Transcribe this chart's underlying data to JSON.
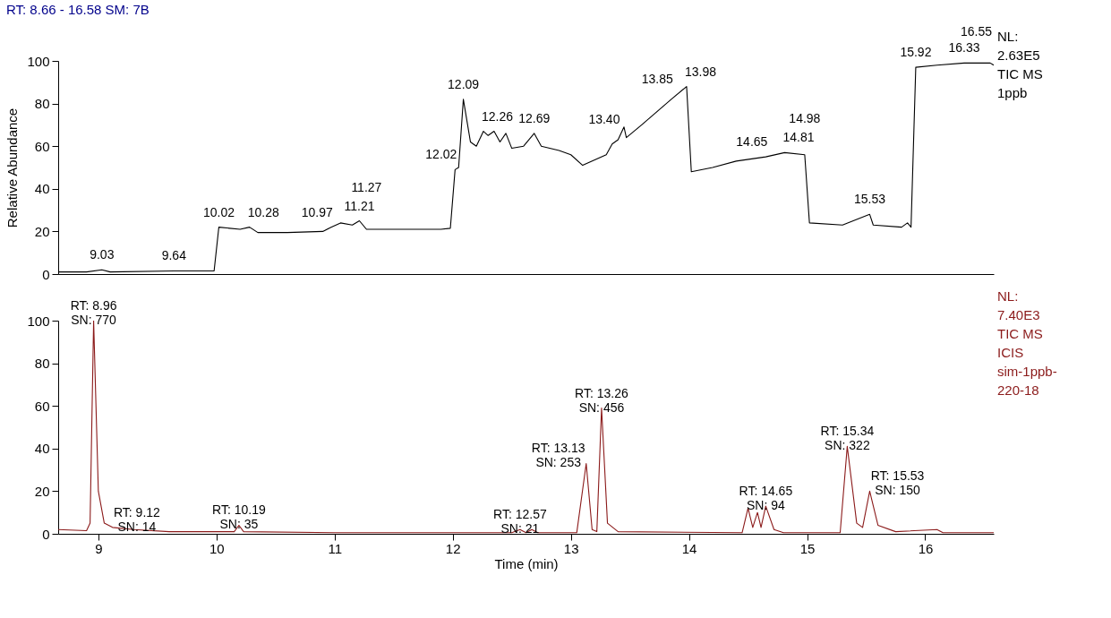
{
  "chart_data": [
    {
      "type": "line",
      "title": "RT: 8.66 - 16.58   SM: 7B",
      "ylabel": "Relative Abundance",
      "xlim": [
        8.66,
        16.58
      ],
      "ylim": [
        0,
        100
      ],
      "yticks": [
        0,
        20,
        40,
        60,
        80,
        100
      ],
      "tick_labels": "y",
      "grid": false,
      "series": [
        {
          "color": "#000000",
          "x": [
            8.66,
            8.9,
            9.03,
            9.1,
            9.64,
            9.98,
            10.02,
            10.2,
            10.28,
            10.35,
            10.6,
            10.9,
            10.97,
            11.05,
            11.15,
            11.21,
            11.27,
            11.5,
            11.9,
            11.98,
            12.02,
            12.05,
            12.09,
            12.15,
            12.2,
            12.26,
            12.3,
            12.35,
            12.4,
            12.45,
            12.5,
            12.6,
            12.69,
            12.75,
            12.9,
            13.0,
            13.1,
            13.3,
            13.35,
            13.4,
            13.45,
            13.47,
            13.6,
            13.85,
            13.98,
            14.02,
            14.2,
            14.4,
            14.65,
            14.81,
            14.98,
            15.02,
            15.3,
            15.53,
            15.56,
            15.8,
            15.85,
            15.88,
            15.92,
            16.1,
            16.33,
            16.55,
            16.58
          ],
          "values": [
            1,
            1,
            2,
            1,
            1.5,
            1.5,
            22,
            21,
            22,
            19.5,
            19.5,
            20,
            22,
            24,
            23,
            25,
            21,
            21,
            21,
            21.5,
            49,
            50,
            82,
            62,
            60,
            67,
            65,
            67,
            62,
            66,
            59,
            60,
            66,
            60,
            58,
            56,
            51,
            56,
            61,
            63,
            69,
            64,
            70,
            82,
            88,
            48,
            50,
            53,
            55,
            57,
            56,
            24,
            23,
            28,
            23,
            22,
            24,
            22,
            97,
            98,
            99,
            99,
            98
          ]
        }
      ],
      "annotations": [
        {
          "text": "9.03",
          "x": 9.03,
          "y": 2
        },
        {
          "text": "9.64",
          "x": 9.64,
          "y": 1.5
        },
        {
          "text": "10.02",
          "x": 10.02,
          "y": 22
        },
        {
          "text": "10.28",
          "x": 10.28,
          "y": 22
        },
        {
          "text": "10.97",
          "x": 10.97,
          "y": 22
        },
        {
          "text": "11.21",
          "x": 11.21,
          "y": 25
        },
        {
          "text": "11.27",
          "x": 11.27,
          "y": 21
        },
        {
          "text": "12.02",
          "x": 12.02,
          "y": 49
        },
        {
          "text": "12.09",
          "x": 12.09,
          "y": 82
        },
        {
          "text": "12.26",
          "x": 12.26,
          "y": 67
        },
        {
          "text": "12.69",
          "x": 12.69,
          "y": 66
        },
        {
          "text": "13.40",
          "x": 13.4,
          "y": 63
        },
        {
          "text": "13.85",
          "x": 13.85,
          "y": 82
        },
        {
          "text": "13.98",
          "x": 13.98,
          "y": 88
        },
        {
          "text": "14.65",
          "x": 14.65,
          "y": 55
        },
        {
          "text": "14.81",
          "x": 14.81,
          "y": 57
        },
        {
          "text": "14.98",
          "x": 14.98,
          "y": 56
        },
        {
          "text": "15.53",
          "x": 15.53,
          "y": 28
        },
        {
          "text": "15.92",
          "x": 15.92,
          "y": 97
        },
        {
          "text": "16.33",
          "x": 16.33,
          "y": 99
        },
        {
          "text": "16.55",
          "x": 16.55,
          "y": 99
        },
        "NL:\n2.63E5\nTIC  MS\n1ppb"
      ]
    },
    {
      "type": "line",
      "xlabel": "Time (min)",
      "xlim": [
        8.66,
        16.58
      ],
      "xticks": [
        9,
        10,
        11,
        12,
        13,
        14,
        15,
        16
      ],
      "ylim": [
        0,
        100
      ],
      "yticks": [
        0,
        20,
        40,
        60,
        80,
        100
      ],
      "grid": false,
      "series": [
        {
          "color": "#8b1a1a",
          "x": [
            8.66,
            8.9,
            8.93,
            8.96,
            9.0,
            9.05,
            9.12,
            9.3,
            9.6,
            10.15,
            10.19,
            10.23,
            11.0,
            12.5,
            12.57,
            12.62,
            12.67,
            12.72,
            13.05,
            13.13,
            13.18,
            13.22,
            13.26,
            13.31,
            13.4,
            14.45,
            14.5,
            14.54,
            14.58,
            14.61,
            14.65,
            14.72,
            14.8,
            15.28,
            15.34,
            15.42,
            15.47,
            15.53,
            15.6,
            15.75,
            16.1,
            16.15,
            16.58
          ],
          "values": [
            2,
            1.5,
            5,
            100,
            20,
            5,
            3,
            2,
            1,
            1,
            4,
            1,
            0.5,
            0.5,
            2,
            0.5,
            2,
            0.5,
            0.5,
            33,
            2,
            1,
            59,
            5,
            1,
            0.5,
            12,
            3,
            10,
            3,
            13,
            2,
            0.5,
            0.5,
            41,
            5,
            3,
            20,
            4,
            1,
            2,
            0.5,
            0.5
          ]
        }
      ],
      "annotations": [
        {
          "text": "RT: 8.96\nSN: 770",
          "x": 8.96,
          "y": 100
        },
        {
          "text": "RT: 9.12\nSN: 14",
          "x": 9.12,
          "y": 3
        },
        {
          "text": "RT: 10.19\nSN: 35",
          "x": 10.19,
          "y": 4
        },
        {
          "text": "RT: 12.57\nSN: 21",
          "x": 12.57,
          "y": 2
        },
        {
          "text": "RT: 13.13\nSN: 253",
          "x": 13.13,
          "y": 33
        },
        {
          "text": "RT: 13.26\nSN: 456",
          "x": 13.26,
          "y": 59
        },
        {
          "text": "RT: 14.65\nSN: 94",
          "x": 14.65,
          "y": 13
        },
        {
          "text": "RT: 15.34\nSN: 322",
          "x": 15.34,
          "y": 41
        },
        {
          "text": "RT: 15.53\nSN: 150",
          "x": 15.53,
          "y": 20
        },
        "NL:\n7.40E3\nTIC  MS\nICIS\nsim-1ppb-\n220-18"
      ]
    }
  ]
}
